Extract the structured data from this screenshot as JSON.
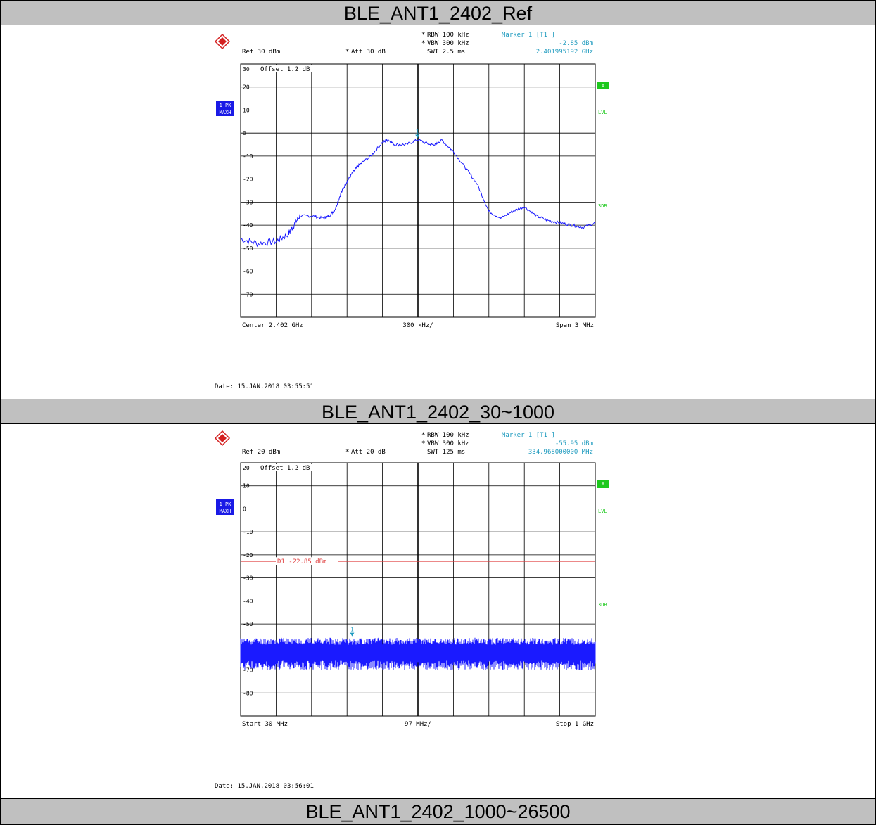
{
  "sections": [
    {
      "title": "BLE_ANT1_2402_Ref",
      "header": {
        "rbw": "RBW 100 kHz",
        "vbw": "VBW 300 kHz",
        "swt": "SWT 2.5 ms",
        "ref": "Ref  30 dBm",
        "att": "Att  30 dB",
        "marker_title": "Marker 1 [T1 ]",
        "marker_level": "-2.85 dBm",
        "marker_freq": "2.401995192 GHz",
        "offset": "Offset  1.2 dB",
        "side_a": "A",
        "side_lvl": "LVL",
        "side_3db": "3DB",
        "trace_1": "1 PK",
        "trace_2": "MAXH",
        "marker_num": "1"
      },
      "footer": {
        "left": "Center  2.402 GHz",
        "center": "300 kHz/",
        "right": "Span  3 MHz"
      },
      "date": "Date: 15.JAN.2018  03:55:51"
    },
    {
      "title": "BLE_ANT1_2402_30~1000",
      "header": {
        "rbw": "RBW 100 kHz",
        "vbw": "VBW 300 kHz",
        "swt": "SWT 125 ms",
        "ref": "Ref  20 dBm",
        "att": "Att  20 dB",
        "marker_title": "Marker 1 [T1 ]",
        "marker_level": "-55.95 dBm",
        "marker_freq": "334.968000000 MHz",
        "offset": "Offset  1.2 dB",
        "side_a": "A",
        "side_lvl": "LVL",
        "side_3db": "3DB",
        "trace_1": "1 PK",
        "trace_2": "MAXH",
        "marker_num": "1",
        "display_line": "D1 -22.85 dBm"
      },
      "footer": {
        "left": "Start  30 MHz",
        "center": "97 MHz/",
        "right": "Stop  1 GHz"
      },
      "date": "Date: 15.JAN.2018  03:56:01"
    },
    {
      "title": "BLE_ANT1_2402_1000~26500"
    }
  ],
  "chart_data": [
    {
      "type": "line",
      "xlabel": "",
      "ylabel": "",
      "x_unit": "GHz",
      "y_unit": "dBm",
      "xlim": [
        2.4005,
        2.4035
      ],
      "ylim": [
        -80,
        30
      ],
      "y_ticks": [
        30,
        20,
        10,
        0,
        -10,
        -20,
        -30,
        -40,
        -50,
        -60,
        -70
      ],
      "grid": true,
      "color": "#1a1aff",
      "series": [
        {
          "x": [
            2.4005,
            2.40065,
            2.4008,
            2.4009,
            2.40095,
            2.401,
            2.4011,
            2.4012,
            2.40125,
            2.4013,
            2.40135,
            2.4014,
            2.40145,
            2.4015,
            2.4016,
            2.4017,
            2.40175,
            2.4018,
            2.4019,
            2.402,
            2.4021,
            2.40215,
            2.4022,
            2.4023,
            2.4024,
            2.4025,
            2.4026,
            2.4027,
            2.4028,
            2.4029,
            2.403,
            2.4031,
            2.4032,
            2.4033,
            2.4034,
            2.4035
          ],
          "y": [
            -46,
            -48,
            -47,
            -44,
            -40,
            -36,
            -36,
            -37,
            -36,
            -33,
            -26,
            -21,
            -17,
            -14,
            -10,
            -4,
            -3,
            -5,
            -5,
            -2.85,
            -5,
            -5,
            -3,
            -8,
            -15,
            -22,
            -34,
            -37,
            -34,
            -32,
            -36,
            -38,
            -39,
            -40,
            -41,
            -39
          ]
        }
      ],
      "marker": {
        "x": 2.401995192,
        "y": -2.85
      }
    },
    {
      "type": "line",
      "xlabel": "",
      "ylabel": "",
      "x_unit": "MHz",
      "y_unit": "dBm",
      "xlim": [
        30,
        1000
      ],
      "ylim": [
        -90,
        20
      ],
      "y_ticks": [
        20,
        10,
        0,
        -10,
        -20,
        -30,
        -40,
        -50,
        -60,
        -70,
        -80
      ],
      "grid": true,
      "color": "#1a1aff",
      "display_line": -22.85,
      "noise_floor": [
        -66,
        -59
      ],
      "marker": {
        "x": 334.968,
        "y": -55.95
      }
    }
  ]
}
